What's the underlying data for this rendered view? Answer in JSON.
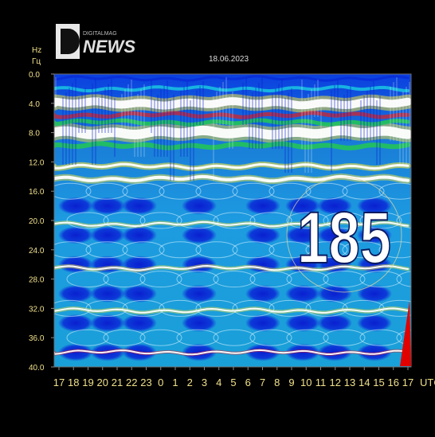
{
  "chart_data": {
    "type": "heatmap",
    "title": "18.06.2023",
    "y_unit_labels": [
      "Hz",
      "Гц"
    ],
    "x_unit_label": "UTC",
    "ylim": [
      0.0,
      40.0
    ],
    "y_ticks": [
      "0.0",
      "4.0",
      "8.0",
      "12.0",
      "16.0",
      "20.0",
      "24.0",
      "28.0",
      "32.0",
      "36.0",
      "40.0"
    ],
    "x_ticks": [
      "17",
      "18",
      "19",
      "20",
      "21",
      "22",
      "23",
      "0",
      "1",
      "2",
      "3",
      "4",
      "5",
      "6",
      "7",
      "8",
      "9",
      "10",
      "11",
      "12",
      "13",
      "14",
      "15",
      "16",
      "17"
    ],
    "badge_number": "185",
    "colors": {
      "background": "#000000",
      "plot_base": "#0a2fd8",
      "band_white": "#ffffff",
      "band_yellow": "#f5e23a",
      "band_red": "#e02020",
      "band_green": "#22c060",
      "band_cyan": "#18b8e0",
      "tick_text": "#f0e08a",
      "marker": "#e00000"
    }
  },
  "logo": {
    "text": "NEWS",
    "letter": "D",
    "tagline": "DIGITALMAG"
  }
}
